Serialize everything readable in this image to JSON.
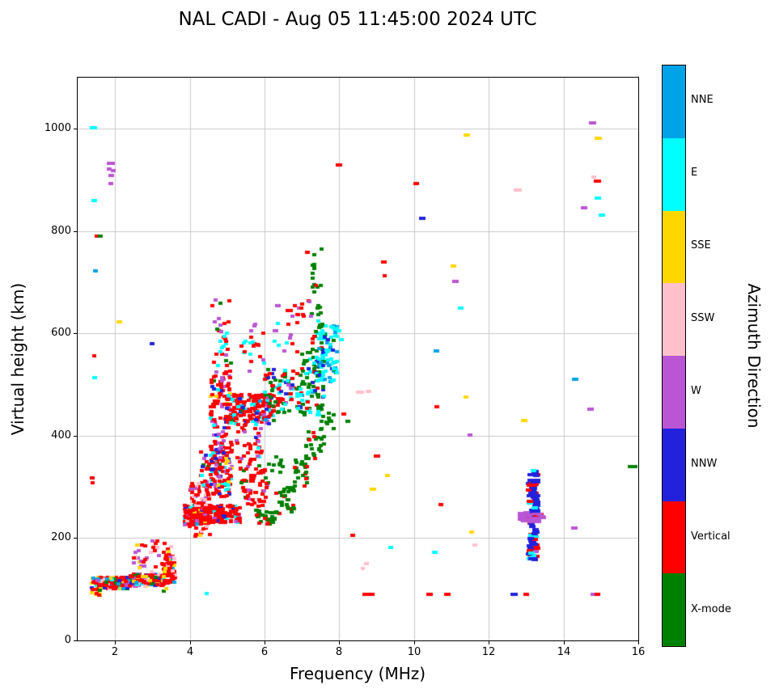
{
  "title": "NAL CADI - Aug 05 11:45:00 2024 UTC",
  "chart_data": {
    "type": "scatter",
    "title": "NAL CADI - Aug 05 11:45:00 2024 UTC",
    "xlabel": "Frequency (MHz)",
    "ylabel": "Virtual height (km)",
    "xlim": [
      1,
      16
    ],
    "ylim": [
      0,
      1100
    ],
    "xticks": [
      2,
      4,
      6,
      8,
      10,
      12,
      14,
      16
    ],
    "yticks": [
      0,
      200,
      400,
      600,
      800,
      1000
    ],
    "grid": true,
    "grid_color": "#c9c9c9",
    "legend_position": "right-colorbar",
    "colorbar": {
      "label": "Azimuth Direction",
      "order": "top-to-bottom",
      "categories": [
        {
          "name": "NNE",
          "color": "#00A2E8"
        },
        {
          "name": "E",
          "color": "#00FFFF"
        },
        {
          "name": "SSE",
          "color": "#FFD700"
        },
        {
          "name": "SSW",
          "color": "#FFC0CB"
        },
        {
          "name": "W",
          "color": "#BA55D3"
        },
        {
          "name": "NNW",
          "color": "#2222DD"
        },
        {
          "name": "Vertical",
          "color": "#FF0000"
        },
        {
          "name": "X-mode",
          "color": "#008000"
        }
      ]
    },
    "points": [
      [
        1.42,
        1002,
        1,
        9
      ],
      [
        1.45,
        860,
        1,
        7
      ],
      [
        1.47,
        722,
        0,
        6
      ],
      [
        1.52,
        790,
        6,
        6
      ],
      [
        1.6,
        790,
        7,
        6
      ],
      [
        1.45,
        513,
        1,
        6
      ],
      [
        1.44,
        556,
        6,
        5
      ],
      [
        1.38,
        318,
        6,
        6
      ],
      [
        1.4,
        308,
        6,
        5
      ],
      [
        1.88,
        933,
        4,
        10
      ],
      [
        1.84,
        922,
        4,
        6
      ],
      [
        1.95,
        918,
        4,
        6
      ],
      [
        1.9,
        908,
        4,
        7
      ],
      [
        1.88,
        893,
        4,
        6
      ],
      [
        2.12,
        622,
        2,
        7
      ],
      [
        3.0,
        580,
        5,
        6
      ],
      [
        3.3,
        96,
        7,
        5
      ],
      [
        3.38,
        101,
        2,
        5
      ],
      [
        4.45,
        92,
        1,
        5
      ],
      [
        6.35,
        655,
        4,
        7
      ],
      [
        6.28,
        605,
        4,
        6
      ],
      [
        7.15,
        758,
        6,
        6
      ],
      [
        8.0,
        930,
        6,
        8
      ],
      [
        8.12,
        442,
        6,
        6
      ],
      [
        8.22,
        428,
        7,
        6
      ],
      [
        8.35,
        205,
        6,
        6
      ],
      [
        8.55,
        485,
        3,
        10
      ],
      [
        8.78,
        486,
        3,
        7
      ],
      [
        8.72,
        90,
        6,
        9
      ],
      [
        8.88,
        90,
        6,
        6
      ],
      [
        8.72,
        150,
        3,
        6
      ],
      [
        8.63,
        140,
        3,
        5
      ],
      [
        8.9,
        295,
        2,
        8
      ],
      [
        9.0,
        360,
        6,
        8
      ],
      [
        9.2,
        740,
        6,
        7
      ],
      [
        9.22,
        712,
        6,
        5
      ],
      [
        9.3,
        322,
        2,
        6
      ],
      [
        9.38,
        182,
        1,
        6
      ],
      [
        10.05,
        893,
        6,
        7
      ],
      [
        10.22,
        825,
        5,
        8
      ],
      [
        10.42,
        90,
        6,
        8
      ],
      [
        10.55,
        172,
        1,
        7
      ],
      [
        10.6,
        566,
        0,
        7
      ],
      [
        10.62,
        457,
        6,
        6
      ],
      [
        10.72,
        265,
        6,
        6
      ],
      [
        10.9,
        90,
        6,
        8
      ],
      [
        11.05,
        732,
        2,
        7
      ],
      [
        11.1,
        702,
        4,
        8
      ],
      [
        11.25,
        650,
        1,
        7
      ],
      [
        11.42,
        988,
        2,
        8
      ],
      [
        11.38,
        475,
        2,
        6
      ],
      [
        11.5,
        402,
        4,
        6
      ],
      [
        11.55,
        212,
        2,
        6
      ],
      [
        11.62,
        186,
        3,
        6
      ],
      [
        12.78,
        880,
        3,
        10
      ],
      [
        12.95,
        430,
        2,
        8
      ],
      [
        12.68,
        90,
        5,
        9
      ],
      [
        13.0,
        90,
        6,
        7
      ],
      [
        13.2,
        332,
        1,
        7
      ],
      [
        14.32,
        510,
        0,
        8
      ],
      [
        14.3,
        220,
        4,
        8
      ],
      [
        14.55,
        845,
        4,
        8
      ],
      [
        14.78,
        1012,
        4,
        9
      ],
      [
        14.92,
        982,
        2,
        9
      ],
      [
        14.9,
        898,
        6,
        9
      ],
      [
        14.8,
        905,
        3,
        6
      ],
      [
        14.92,
        865,
        1,
        8
      ],
      [
        15.02,
        832,
        1,
        8
      ],
      [
        14.72,
        452,
        4,
        8
      ],
      [
        14.88,
        90,
        6,
        9
      ],
      [
        14.78,
        90,
        4,
        5
      ],
      [
        15.85,
        340,
        7,
        12
      ],
      [
        8.0,
        605,
        1,
        6
      ],
      [
        8.05,
        588,
        1,
        6
      ]
    ],
    "clusters": [
      {
        "f": [
          1.38,
          2.4
        ],
        "h": [
          100,
          124
        ],
        "n": 170,
        "mix": [
          [
            6,
            0.52
          ],
          [
            0,
            0.07
          ],
          [
            1,
            0.08
          ],
          [
            2,
            0.08
          ],
          [
            3,
            0.07
          ],
          [
            4,
            0.06
          ],
          [
            5,
            0.06
          ],
          [
            7,
            0.06
          ]
        ]
      },
      {
        "f": [
          2.4,
          3.3
        ],
        "h": [
          106,
          130
        ],
        "n": 140,
        "mix": [
          [
            6,
            0.6
          ],
          [
            0,
            0.06
          ],
          [
            1,
            0.07
          ],
          [
            2,
            0.07
          ],
          [
            3,
            0.06
          ],
          [
            4,
            0.05
          ],
          [
            5,
            0.05
          ],
          [
            7,
            0.04
          ]
        ]
      },
      {
        "f": [
          3.28,
          3.6
        ],
        "h": [
          112,
          168
        ],
        "n": 100,
        "mix": [
          [
            6,
            0.8
          ],
          [
            3,
            0.06
          ],
          [
            0,
            0.05
          ],
          [
            2,
            0.05
          ],
          [
            1,
            0.04
          ]
        ]
      },
      {
        "f": [
          2.5,
          3.5
        ],
        "h": [
          132,
          195
        ],
        "n": 40,
        "mix": [
          [
            6,
            0.45
          ],
          [
            3,
            0.35
          ],
          [
            4,
            0.1
          ],
          [
            2,
            0.1
          ]
        ]
      },
      {
        "f": [
          1.36,
          1.6
        ],
        "h": [
          88,
          102
        ],
        "n": 10,
        "mix": [
          [
            2,
            0.4
          ],
          [
            7,
            0.3
          ],
          [
            6,
            0.3
          ]
        ]
      },
      {
        "f": [
          3.85,
          4.5
        ],
        "h": [
          226,
          264
        ],
        "n": 230,
        "mix": [
          [
            6,
            0.78
          ],
          [
            4,
            0.05
          ],
          [
            5,
            0.04
          ],
          [
            2,
            0.04
          ],
          [
            1,
            0.03
          ],
          [
            0,
            0.03
          ],
          [
            3,
            0.03
          ]
        ]
      },
      {
        "f": [
          4.5,
          5.35
        ],
        "h": [
          230,
          264
        ],
        "n": 130,
        "mix": [
          [
            6,
            0.82
          ],
          [
            4,
            0.06
          ],
          [
            1,
            0.06
          ],
          [
            5,
            0.06
          ]
        ]
      },
      {
        "f": [
          4.0,
          4.6
        ],
        "h": [
          200,
          226
        ],
        "n": 12,
        "mix": [
          [
            6,
            0.6
          ],
          [
            3,
            0.2
          ],
          [
            2,
            0.2
          ]
        ]
      },
      {
        "f": [
          3.95,
          4.6
        ],
        "h": [
          264,
          308
        ],
        "n": 45,
        "mix": [
          [
            6,
            0.7
          ],
          [
            3,
            0.15
          ],
          [
            4,
            0.15
          ]
        ]
      },
      {
        "f": [
          4.3,
          5.15
        ],
        "h": [
          280,
          395
        ],
        "n": 95,
        "mix": [
          [
            6,
            0.6
          ],
          [
            4,
            0.12
          ],
          [
            5,
            0.08
          ],
          [
            1,
            0.08
          ],
          [
            7,
            0.06
          ],
          [
            2,
            0.06
          ]
        ]
      },
      {
        "f": [
          4.55,
          5.05
        ],
        "h": [
          300,
          420
        ],
        "n": 70,
        "mix": [
          [
            6,
            0.6
          ],
          [
            4,
            0.15
          ],
          [
            5,
            0.1
          ],
          [
            1,
            0.1
          ],
          [
            2,
            0.05
          ]
        ]
      },
      {
        "f": [
          4.55,
          5.1
        ],
        "h": [
          420,
          525
        ],
        "n": 85,
        "mix": [
          [
            6,
            0.55
          ],
          [
            4,
            0.15
          ],
          [
            1,
            0.1
          ],
          [
            5,
            0.1
          ],
          [
            7,
            0.05
          ],
          [
            2,
            0.05
          ]
        ]
      },
      {
        "f": [
          4.6,
          5.1
        ],
        "h": [
          525,
          672
        ],
        "n": 32,
        "mix": [
          [
            6,
            0.6
          ],
          [
            4,
            0.2
          ],
          [
            7,
            0.1
          ],
          [
            1,
            0.1
          ]
        ]
      },
      {
        "f": [
          5.0,
          6.25
        ],
        "h": [
          424,
          482
        ],
        "n": 170,
        "mix": [
          [
            6,
            0.68
          ],
          [
            1,
            0.1
          ],
          [
            5,
            0.08
          ],
          [
            4,
            0.06
          ],
          [
            7,
            0.04
          ],
          [
            0,
            0.04
          ]
        ]
      },
      {
        "f": [
          5.35,
          6.1
        ],
        "h": [
          262,
          345
        ],
        "n": 60,
        "mix": [
          [
            6,
            0.8
          ],
          [
            4,
            0.1
          ],
          [
            7,
            0.1
          ]
        ]
      },
      {
        "f": [
          5.2,
          5.95
        ],
        "h": [
          348,
          424
        ],
        "n": 40,
        "mix": [
          [
            6,
            0.65
          ],
          [
            4,
            0.15
          ],
          [
            1,
            0.1
          ],
          [
            5,
            0.1
          ]
        ]
      },
      {
        "f": [
          5.3,
          6.0
        ],
        "h": [
          520,
          622
        ],
        "n": 22,
        "mix": [
          [
            6,
            0.4
          ],
          [
            4,
            0.3
          ],
          [
            1,
            0.2
          ],
          [
            5,
            0.1
          ]
        ]
      },
      {
        "f": [
          5.75,
          6.3
        ],
        "h": [
          226,
          258
        ],
        "n": 35,
        "mix": [
          [
            7,
            0.85
          ],
          [
            6,
            0.15
          ]
        ]
      },
      {
        "f": [
          6.3,
          6.8
        ],
        "h": [
          248,
          300
        ],
        "n": 30,
        "mix": [
          [
            7,
            0.9
          ],
          [
            6,
            0.1
          ]
        ]
      },
      {
        "f": [
          6.8,
          7.15
        ],
        "h": [
          300,
          358
        ],
        "n": 25,
        "mix": [
          [
            7,
            0.9
          ],
          [
            6,
            0.1
          ]
        ]
      },
      {
        "f": [
          7.1,
          7.6
        ],
        "h": [
          355,
          410
        ],
        "n": 25,
        "mix": [
          [
            7,
            0.9
          ],
          [
            6,
            0.1
          ]
        ]
      },
      {
        "f": [
          7.5,
          7.85
        ],
        "h": [
          405,
          445
        ],
        "n": 12,
        "mix": [
          [
            7,
            1.0
          ]
        ]
      },
      {
        "f": [
          6.1,
          6.5
        ],
        "h": [
          325,
          360
        ],
        "n": 10,
        "mix": [
          [
            7,
            1.0
          ]
        ]
      },
      {
        "f": [
          6.0,
          7.0
        ],
        "h": [
          445,
          532
        ],
        "n": 95,
        "mix": [
          [
            7,
            0.3
          ],
          [
            6,
            0.3
          ],
          [
            1,
            0.2
          ],
          [
            5,
            0.1
          ],
          [
            4,
            0.1
          ]
        ]
      },
      {
        "f": [
          6.95,
          7.6
        ],
        "h": [
          440,
          575
        ],
        "n": 95,
        "mix": [
          [
            7,
            0.55
          ],
          [
            1,
            0.2
          ],
          [
            6,
            0.12
          ],
          [
            5,
            0.08
          ],
          [
            0,
            0.05
          ]
        ]
      },
      {
        "f": [
          7.35,
          7.95
        ],
        "h": [
          498,
          615
        ],
        "n": 85,
        "mix": [
          [
            1,
            0.55
          ],
          [
            7,
            0.2
          ],
          [
            0,
            0.15
          ],
          [
            5,
            0.1
          ]
        ]
      },
      {
        "f": [
          7.25,
          7.6
        ],
        "h": [
          578,
          768
        ],
        "n": 30,
        "mix": [
          [
            7,
            0.8
          ],
          [
            6,
            0.12
          ],
          [
            1,
            0.08
          ]
        ]
      },
      {
        "f": [
          6.6,
          7.3
        ],
        "h": [
          628,
          668
        ],
        "n": 14,
        "mix": [
          [
            6,
            0.7
          ],
          [
            4,
            0.3
          ]
        ]
      },
      {
        "f": [
          6.25,
          6.9
        ],
        "h": [
          558,
          622
        ],
        "n": 12,
        "mix": [
          [
            4,
            0.4
          ],
          [
            6,
            0.3
          ],
          [
            1,
            0.3
          ]
        ]
      },
      {
        "f": [
          13.08,
          13.3
        ],
        "h": [
          158,
          332
        ],
        "n": 95,
        "pw": 8,
        "mix": [
          [
            5,
            0.72
          ],
          [
            6,
            0.16
          ],
          [
            4,
            0.06
          ],
          [
            1,
            0.06
          ]
        ]
      },
      {
        "f": [
          12.85,
          13.45
        ],
        "h": [
          230,
          250
        ],
        "n": 32,
        "pw": 8,
        "mix": [
          [
            4,
            0.88
          ],
          [
            6,
            0.12
          ]
        ]
      }
    ]
  }
}
